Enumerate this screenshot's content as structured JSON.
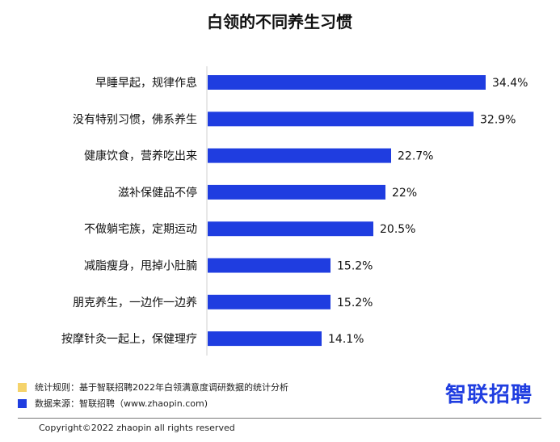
{
  "chart_data": {
    "type": "bar",
    "orientation": "horizontal",
    "title": "白领的不同养生习惯",
    "categories": [
      "早睡早起，规律作息",
      "没有特别习惯，佛系养生",
      "健康饮食，营养吃出来",
      "滋补保健品不停",
      "不做躺宅族，定期运动",
      "减脂瘦身，甩掉小肚腩",
      "朋克养生，一边作一边养",
      "按摩针灸一起上，保健理疗"
    ],
    "values": [
      34.4,
      32.9,
      22.7,
      22,
      20.5,
      15.2,
      15.2,
      14.1
    ],
    "value_labels": [
      "34.4%",
      "32.9%",
      "22.7%",
      "22%",
      "20.5%",
      "15.2%",
      "15.2%",
      "14.1%"
    ],
    "unit": "%",
    "xlim": [
      0,
      38
    ],
    "grid": false,
    "bar_color": "#1f3de0"
  },
  "footer": {
    "note_rule": "统计规则：基于智联招聘2022年白领满意度调研数据的统计分析",
    "note_source": "数据来源：智联招聘（www.zhaopin.com)",
    "rule_color": "#f5d36b",
    "source_color": "#1f3de0",
    "brand_logo_text": "智联招聘",
    "brand_color": "#1f3de0",
    "copyright": "Copyright©2022 zhaopin all rights reserved"
  }
}
